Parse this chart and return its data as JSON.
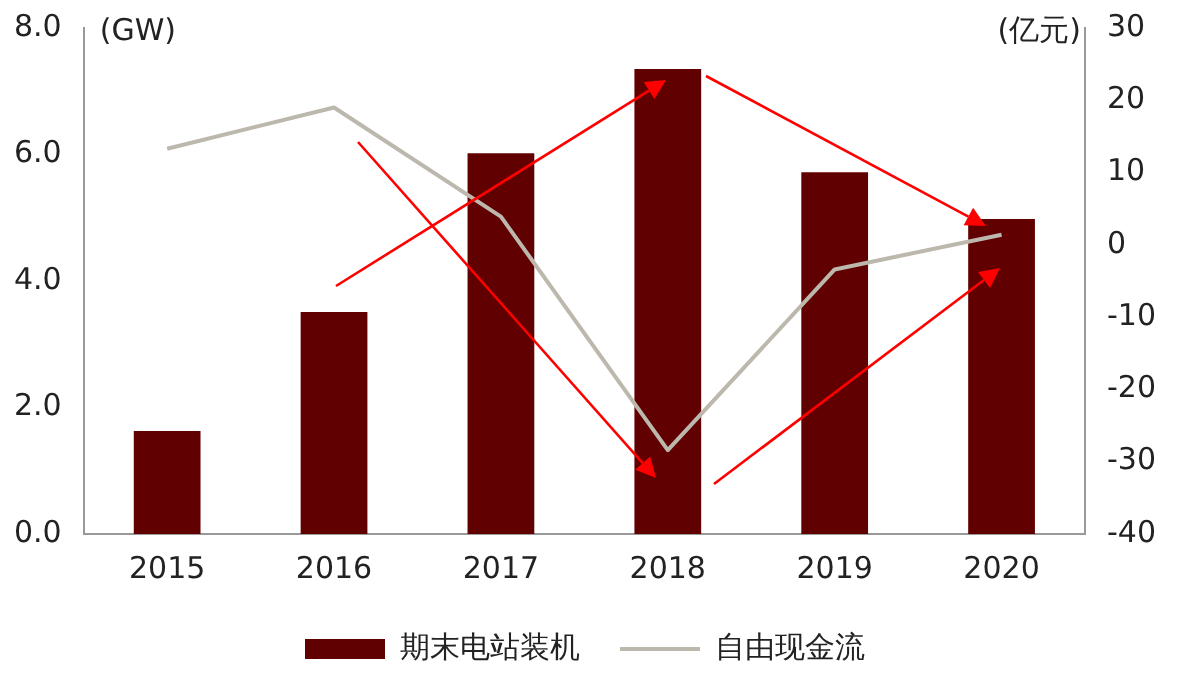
{
  "chart_data": {
    "type": "bar",
    "ylabel": "(GW)",
    "y2label": "(亿元)",
    "categories": [
      "2015",
      "2016",
      "2017",
      "2018",
      "2019",
      "2020"
    ],
    "series": [
      {
        "name": "期末电站装机",
        "color": "#600000",
        "values": [
          1.63,
          3.51,
          6.02,
          7.35,
          5.72,
          4.98
        ]
      },
      {
        "name": "自由现金流",
        "type": "line",
        "axis": "y2",
        "color": "#bdb8ad",
        "values": [
          13.3,
          19,
          3.9,
          -28.4,
          -3.4,
          1.4
        ]
      }
    ],
    "ylim": [
      0,
      8
    ],
    "yticks": [
      {
        "value": 0,
        "label": "0.0"
      },
      {
        "value": 2,
        "label": "2.0"
      },
      {
        "value": 4,
        "label": "4.0"
      },
      {
        "value": 6,
        "label": "6.0"
      },
      {
        "value": 8,
        "label": "8.0"
      }
    ],
    "y2lim": [
      -40,
      30
    ],
    "y2ticks": [
      -40,
      -30,
      -20,
      -10,
      0,
      10,
      20,
      30
    ],
    "grid": false,
    "legend": "bottom",
    "marker": "none",
    "line_style": "solid"
  }
}
